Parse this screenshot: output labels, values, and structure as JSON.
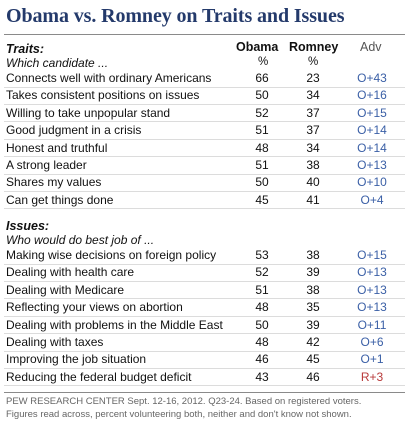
{
  "title": "Obama vs. Romney on Traits and Issues",
  "columns": {
    "obama": "Obama",
    "romney": "Romney",
    "adv": "Adv",
    "pct": "%"
  },
  "chart_data": {
    "type": "table",
    "traits": {
      "title": "Traits:",
      "subtitle": "Which candidate ...",
      "rows": [
        {
          "label": "Connects well with ordinary Americans",
          "obama": "66",
          "romney": "23",
          "adv": "O+43"
        },
        {
          "label": "Takes consistent positions on issues",
          "obama": "50",
          "romney": "34",
          "adv": "O+16"
        },
        {
          "label": "Willing to take unpopular stand",
          "obama": "52",
          "romney": "37",
          "adv": "O+15"
        },
        {
          "label": "Good judgment in a crisis",
          "obama": "51",
          "romney": "37",
          "adv": "O+14"
        },
        {
          "label": "Honest and truthful",
          "obama": "48",
          "romney": "34",
          "adv": "O+14"
        },
        {
          "label": "A strong leader",
          "obama": "51",
          "romney": "38",
          "adv": "O+13"
        },
        {
          "label": "Shares my values",
          "obama": "50",
          "romney": "40",
          "adv": "O+10"
        },
        {
          "label": "Can get things done",
          "obama": "45",
          "romney": "41",
          "adv": "O+4"
        }
      ]
    },
    "issues": {
      "title": "Issues:",
      "subtitle": "Who would do best job of ...",
      "rows": [
        {
          "label": "Making wise decisions on foreign policy",
          "obama": "53",
          "romney": "38",
          "adv": "O+15"
        },
        {
          "label": "Dealing with health care",
          "obama": "52",
          "romney": "39",
          "adv": "O+13"
        },
        {
          "label": "Dealing with Medicare",
          "obama": "51",
          "romney": "38",
          "adv": "O+13"
        },
        {
          "label": "Reflecting your views on abortion",
          "obama": "48",
          "romney": "35",
          "adv": "O+13"
        },
        {
          "label": "Dealing with problems in the Middle East",
          "obama": "50",
          "romney": "39",
          "adv": "O+11"
        },
        {
          "label": "Dealing with taxes",
          "obama": "48",
          "romney": "42",
          "adv": "O+6"
        },
        {
          "label": "Improving the job situation",
          "obama": "46",
          "romney": "45",
          "adv": "O+1"
        },
        {
          "label": "Reducing the federal budget deficit",
          "obama": "43",
          "romney": "46",
          "adv": "R+3"
        }
      ]
    }
  },
  "footer": {
    "line1": "PEW RESEARCH CENTER Sept. 12-16, 2012. Q23-24. Based on registered voters.",
    "line2": "Figures read across, percent volunteering both, neither and don't know not shown."
  },
  "colors": {
    "title": "#243a6b",
    "obama_adv": "#3a5fa6",
    "romney_adv": "#b83a3a"
  }
}
